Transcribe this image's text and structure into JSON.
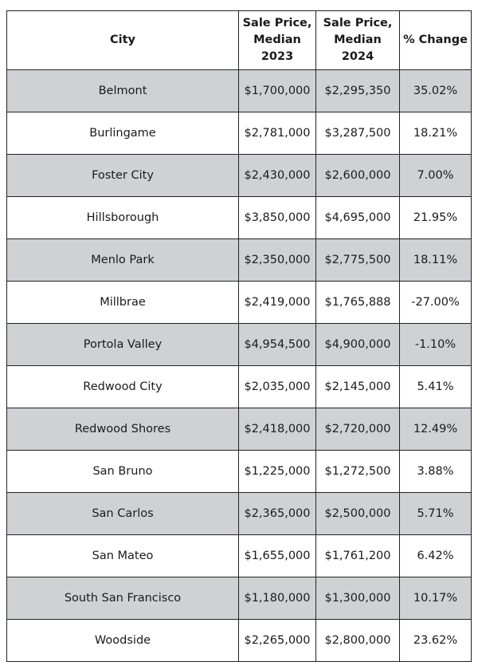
{
  "table": {
    "headers": {
      "city": "City",
      "price_2023": "Sale Price, Median 2023",
      "price_2024": "Sale Price, Median 2024",
      "change": "% Change"
    },
    "shade_color": "#d0d1d5",
    "rows": [
      {
        "city": "Belmont",
        "price_2023": "$1,700,000",
        "price_2024": "$2,295,350",
        "change": "35.02%"
      },
      {
        "city": "Burlingame",
        "price_2023": "$2,781,000",
        "price_2024": "$3,287,500",
        "change": "18.21%"
      },
      {
        "city": "Foster City",
        "price_2023": "$2,430,000",
        "price_2024": "$2,600,000",
        "change": "7.00%"
      },
      {
        "city": "Hillsborough",
        "price_2023": "$3,850,000",
        "price_2024": "$4,695,000",
        "change": "21.95%"
      },
      {
        "city": "Menlo Park",
        "price_2023": "$2,350,000",
        "price_2024": "$2,775,500",
        "change": "18.11%"
      },
      {
        "city": "Millbrae",
        "price_2023": "$2,419,000",
        "price_2024": "$1,765,888",
        "change": "-27.00%"
      },
      {
        "city": "Portola Valley",
        "price_2023": "$4,954,500",
        "price_2024": "$4,900,000",
        "change": "-1.10%"
      },
      {
        "city": "Redwood City",
        "price_2023": "$2,035,000",
        "price_2024": "$2,145,000",
        "change": "5.41%"
      },
      {
        "city": "Redwood Shores",
        "price_2023": "$2,418,000",
        "price_2024": "$2,720,000",
        "change": "12.49%"
      },
      {
        "city": "San Bruno",
        "price_2023": "$1,225,000",
        "price_2024": "$1,272,500",
        "change": "3.88%"
      },
      {
        "city": "San Carlos",
        "price_2023": "$2,365,000",
        "price_2024": "$2,500,000",
        "change": "5.71%"
      },
      {
        "city": "San Mateo",
        "price_2023": "$1,655,000",
        "price_2024": "$1,761,200",
        "change": "6.42%"
      },
      {
        "city": "South San Francisco",
        "price_2023": "$1,180,000",
        "price_2024": "$1,300,000",
        "change": "10.17%"
      },
      {
        "city": "Woodside",
        "price_2023": "$2,265,000",
        "price_2024": "$2,800,000",
        "change": "23.62%"
      }
    ]
  }
}
